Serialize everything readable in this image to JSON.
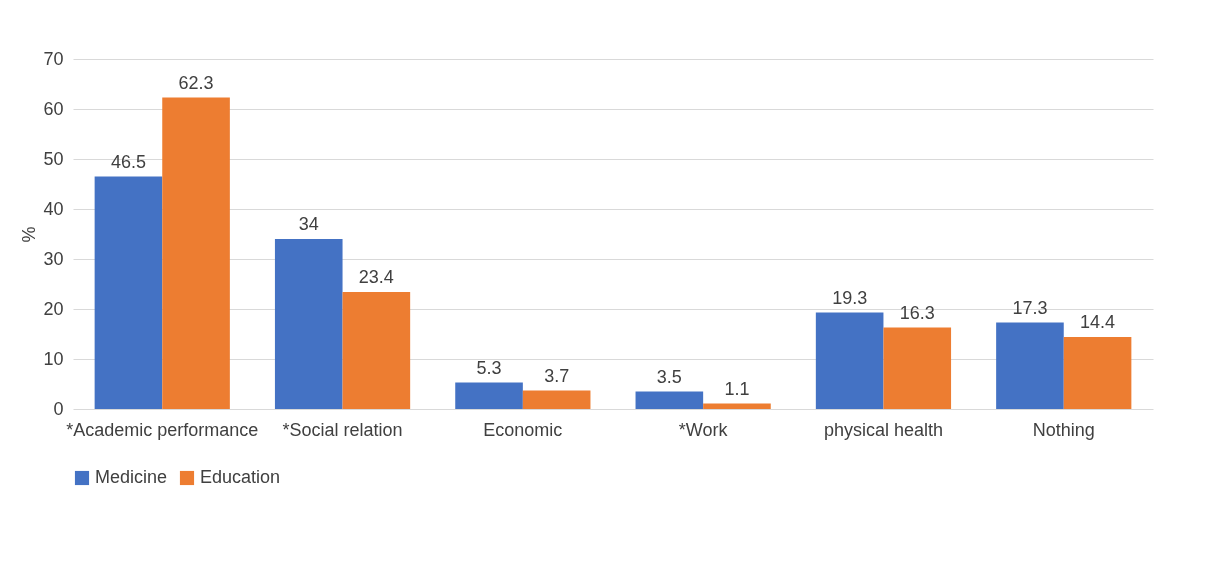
{
  "chart_data": {
    "type": "bar",
    "ylabel": "%",
    "categories": [
      "*Academic performance",
      "*Social relation",
      "Economic",
      "*Work",
      "physical health",
      "Nothing"
    ],
    "series": [
      {
        "name": "Medicine",
        "color": "#4472c4",
        "values": [
          46.5,
          34,
          5.3,
          3.5,
          19.3,
          17.3
        ]
      },
      {
        "name": "Education",
        "color": "#ed7d31",
        "values": [
          62.3,
          23.4,
          3.7,
          1.1,
          16.3,
          14.4
        ]
      }
    ],
    "ylim": [
      0,
      70
    ],
    "yticks": [
      0,
      10,
      20,
      30,
      40,
      50,
      60,
      70
    ],
    "grid": "y",
    "legend": "bottom",
    "data_labels": true
  }
}
